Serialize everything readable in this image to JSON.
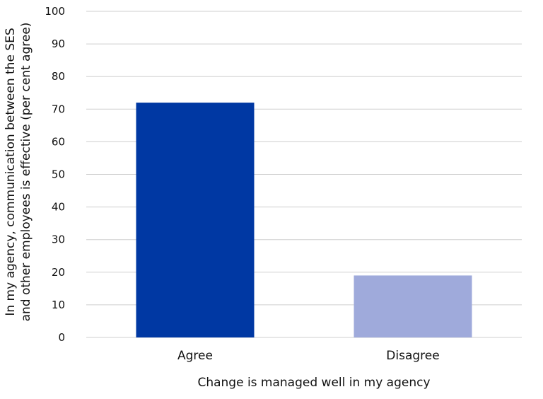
{
  "chart_data": {
    "type": "bar",
    "categories": [
      "Agree",
      "Disagree"
    ],
    "values": [
      72,
      19
    ],
    "bar_colors": [
      "#0038a3",
      "#9faadb"
    ],
    "xlabel": "Change is managed well in my agency",
    "ylabel_lines": [
      "In my agency, communication between the SES",
      "and other employees is effective (per cent agree)"
    ],
    "ylim": [
      0,
      100
    ],
    "yticks": [
      0,
      10,
      20,
      30,
      40,
      50,
      60,
      70,
      80,
      90,
      100
    ],
    "grid": true,
    "legend": "none"
  }
}
